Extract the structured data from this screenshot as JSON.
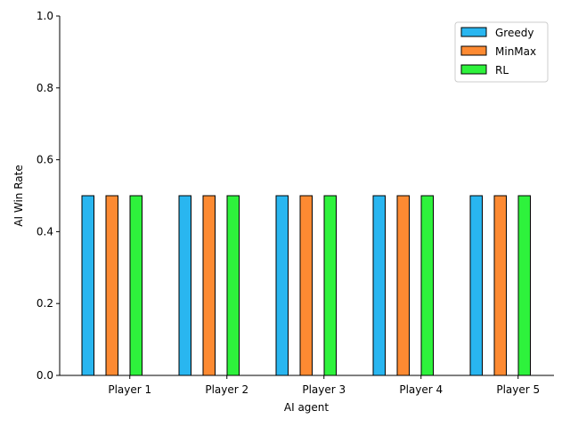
{
  "chart_data": {
    "type": "bar",
    "title": "",
    "xlabel": "AI agent",
    "ylabel": "AI Win Rate",
    "ylim": [
      0,
      1.0
    ],
    "yticks": [
      "0.0",
      "0.2",
      "0.4",
      "0.6",
      "0.8",
      "1.0"
    ],
    "categories": [
      "Player 1",
      "Player 2",
      "Player 3",
      "Player 4",
      "Player 5"
    ],
    "series": [
      {
        "name": "Greedy",
        "color": "#29b6f0",
        "values": [
          0.5,
          0.5,
          0.5,
          0.5,
          0.5
        ],
        "error": [
          0.0,
          0.0,
          0.0,
          0.0,
          0.0
        ]
      },
      {
        "name": "MinMax",
        "color": "#fd8a32",
        "values": [
          0.5,
          0.5,
          0.5,
          0.5,
          0.5
        ],
        "error": [
          0.0,
          0.0,
          0.0,
          0.0,
          0.0
        ]
      },
      {
        "name": "RL",
        "color": "#2ef23c",
        "values": [
          0.5,
          0.5,
          0.5,
          0.5,
          0.5
        ],
        "error": [
          0.0,
          0.0,
          0.0,
          0.0,
          0.0
        ]
      }
    ],
    "legend_position": "top-right",
    "grid": false
  }
}
